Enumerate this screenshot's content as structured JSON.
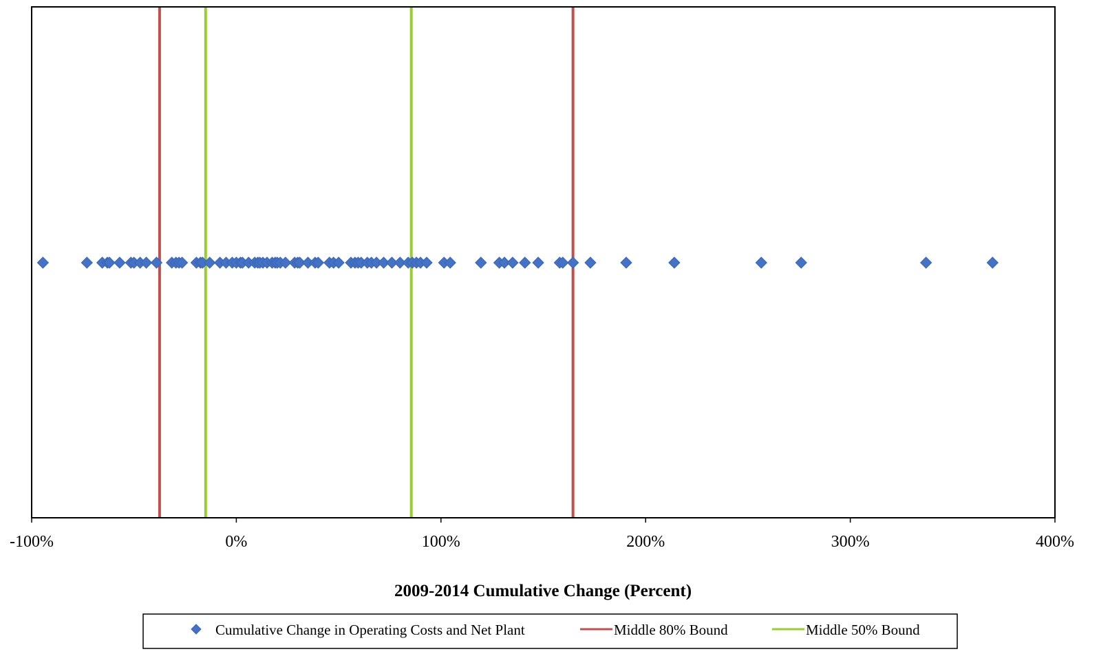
{
  "chart_data": {
    "type": "scatter",
    "title": "",
    "xlabel": "2009-2014 Cumulative Change (Percent)",
    "ylabel": "",
    "xlim": [
      -100,
      400
    ],
    "x_ticks": [
      -100,
      0,
      100,
      200,
      300,
      400
    ],
    "x_tick_labels": [
      "-100%",
      "0%",
      "100%",
      "200%",
      "300%",
      "400%"
    ],
    "grid": false,
    "legend_position": "bottom",
    "series": [
      {
        "name": "Cumulative Change in Operating Costs and Net Plant",
        "kind": "points",
        "marker": "diamond",
        "color": "#4472C4",
        "x": [
          -94.5,
          -73,
          -65.5,
          -63,
          -62,
          -57,
          -51.5,
          -50,
          -47,
          -44,
          -39,
          -31.5,
          -29.5,
          -28,
          -26.5,
          -19.5,
          -17.5,
          -16.5,
          -13,
          -8,
          -5,
          -2,
          0,
          2,
          3,
          6,
          9,
          10.5,
          11.5,
          13,
          15,
          17.5,
          19,
          20,
          21.5,
          24,
          28.5,
          30,
          31,
          35,
          38.5,
          40,
          45.5,
          47.5,
          50,
          56,
          58,
          59.5,
          61,
          64,
          66,
          68.5,
          72,
          76,
          80,
          84,
          86,
          88,
          90,
          93,
          101.5,
          104.5,
          119.5,
          128.5,
          131,
          135,
          141,
          147.5,
          158,
          159.5,
          164.5,
          173,
          190.5,
          214,
          256.5,
          276,
          337,
          369.5
        ]
      },
      {
        "name": "Middle 80% Bound",
        "kind": "vlines",
        "color": "#C0504D",
        "x": [
          -37.5,
          164.5
        ]
      },
      {
        "name": "Middle 50% Bound",
        "kind": "vlines",
        "color": "#9ACD32",
        "x": [
          -15,
          85.5
        ]
      }
    ]
  }
}
